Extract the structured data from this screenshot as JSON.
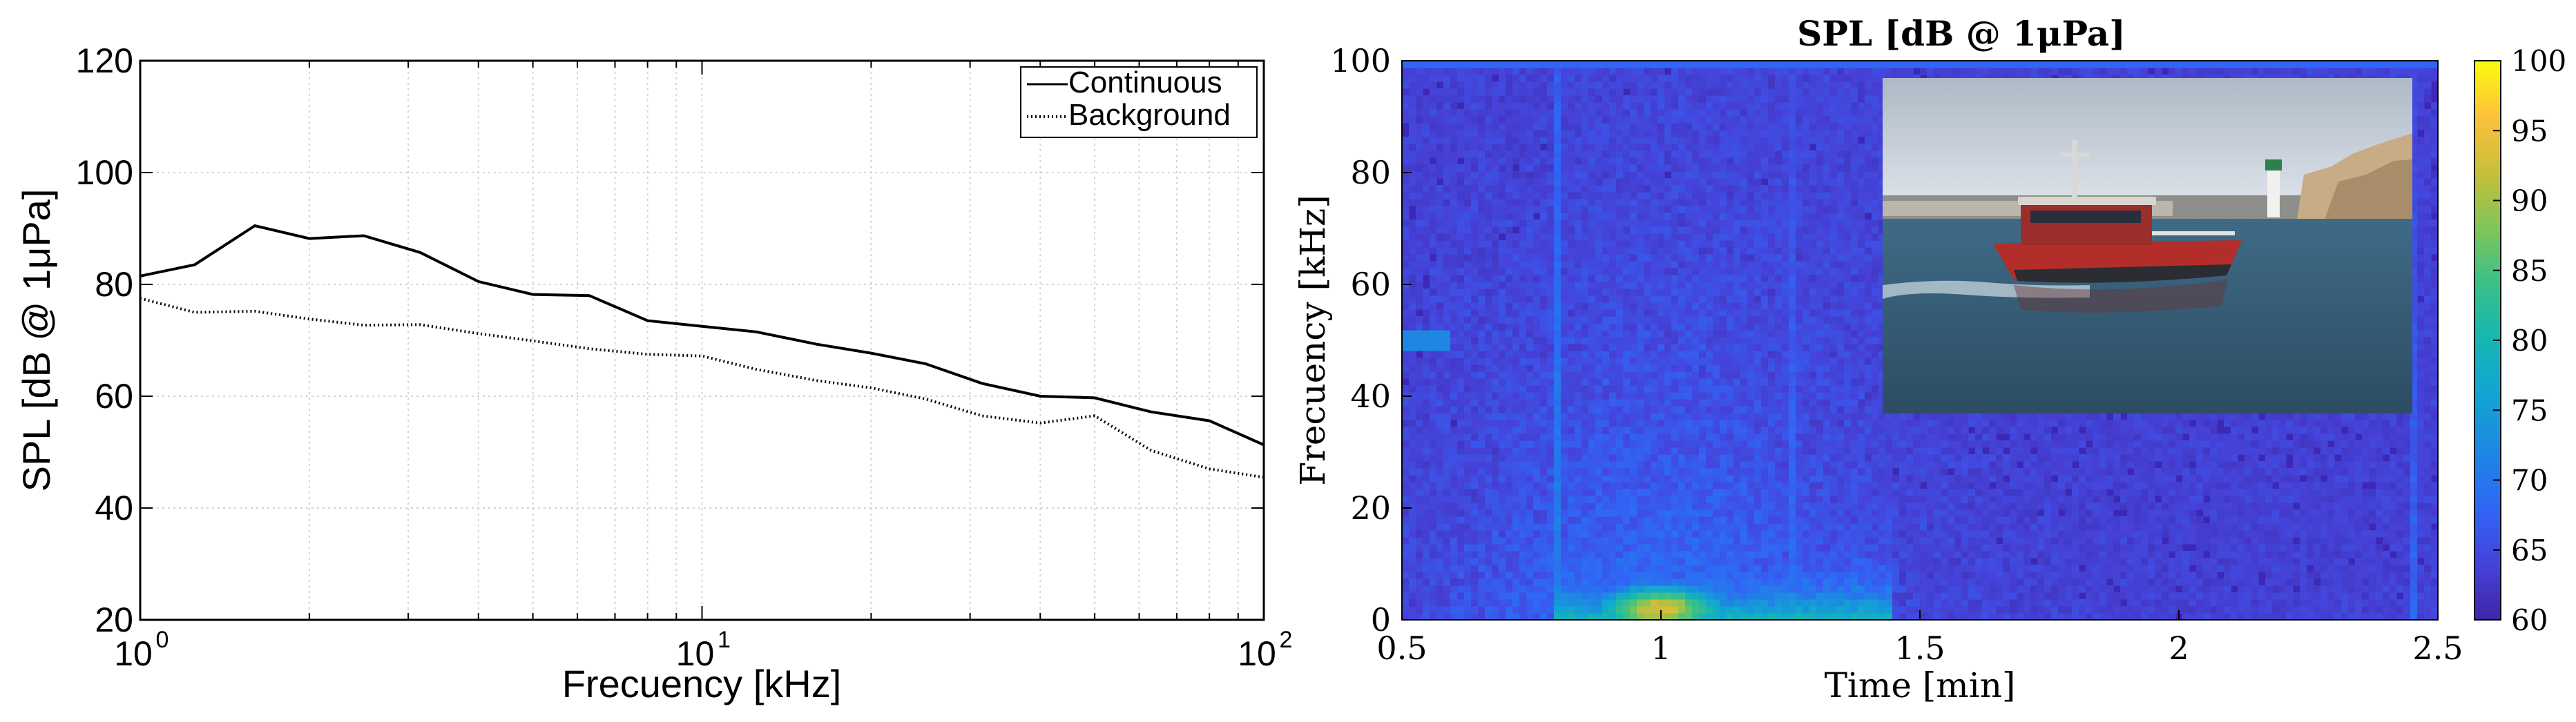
{
  "chart_data": [
    {
      "type": "line",
      "title": "",
      "xlabel": "Frecuency [kHz]",
      "ylabel": "SPL [dB @ 1μPa]",
      "xscale": "log",
      "xlim": [
        1,
        100
      ],
      "ylim": [
        20,
        120
      ],
      "x_ticks": [
        1,
        10,
        100
      ],
      "x_tick_labels": [
        {
          "base": "10",
          "exp": "0"
        },
        {
          "base": "10",
          "exp": "1"
        },
        {
          "base": "10",
          "exp": "2"
        }
      ],
      "y_ticks": [
        20,
        40,
        60,
        80,
        100,
        120
      ],
      "grid": true,
      "legend": "top-right",
      "series": [
        {
          "name": "Continuous",
          "style": "solid",
          "color": "#000000",
          "x": [
            1,
            1.25,
            1.6,
            2,
            2.5,
            3.15,
            4,
            5,
            6.3,
            8,
            10,
            12.5,
            16,
            20,
            25,
            31.5,
            40,
            50,
            63,
            80,
            100
          ],
          "y": [
            81.5,
            83.5,
            90.5,
            88.2,
            88.7,
            85.7,
            80.5,
            78.2,
            78.0,
            73.5,
            72.5,
            71.5,
            69.3,
            67.7,
            65.8,
            62.3,
            60.0,
            59.7,
            57.2,
            55.6,
            51.3
          ]
        },
        {
          "name": "Background",
          "style": "dotted",
          "color": "#000000",
          "x": [
            1,
            1.25,
            1.6,
            2,
            2.5,
            3.15,
            4,
            5,
            6.3,
            8,
            10,
            12.5,
            16,
            20,
            25,
            31.5,
            40,
            50,
            63,
            80,
            100
          ],
          "y": [
            77.5,
            75.0,
            75.2,
            73.8,
            72.7,
            72.8,
            71.2,
            69.9,
            68.5,
            67.5,
            67.2,
            64.8,
            62.8,
            61.5,
            59.5,
            56.5,
            55.2,
            56.5,
            50.3,
            47.0,
            45.5
          ]
        }
      ]
    },
    {
      "type": "heatmap",
      "title": "SPL [dB @ 1μPa]",
      "xlabel": "Time [min]",
      "ylabel": "Frecuency [kHz]",
      "xlim": [
        0.5,
        2.5
      ],
      "ylim": [
        0,
        100
      ],
      "x_ticks": [
        0.5,
        1,
        1.5,
        2,
        2.5
      ],
      "y_ticks": [
        0,
        20,
        40,
        60,
        80,
        100
      ],
      "colorbar": {
        "range": [
          60,
          100
        ],
        "ticks": [
          60,
          65,
          70,
          75,
          80,
          85,
          90,
          95,
          100
        ],
        "colormap": "parula"
      },
      "background_level_db": 61,
      "features": [
        {
          "kind": "broadband_hotspot",
          "time_min": 1.0,
          "freq_khz": 2,
          "level_db": 92
        },
        {
          "kind": "low_frequency_band",
          "time_range": [
            0.8,
            1.45
          ],
          "freq_range": [
            0,
            8
          ],
          "level_db": 78
        },
        {
          "kind": "tonal_line",
          "time_range": [
            0.5,
            0.6
          ],
          "freq_khz": 50,
          "level_db": 72
        },
        {
          "kind": "vertical_streak",
          "time_min": 0.8,
          "level_db": 70
        },
        {
          "kind": "vertical_streak",
          "time_min": 1.25,
          "level_db": 68
        },
        {
          "kind": "vertical_streak",
          "time_min": 2.45,
          "level_db": 67
        },
        {
          "kind": "top_edge_band",
          "freq_khz": 100,
          "level_db": 68
        }
      ],
      "inset_photo": "pilot-boat-photo"
    }
  ]
}
